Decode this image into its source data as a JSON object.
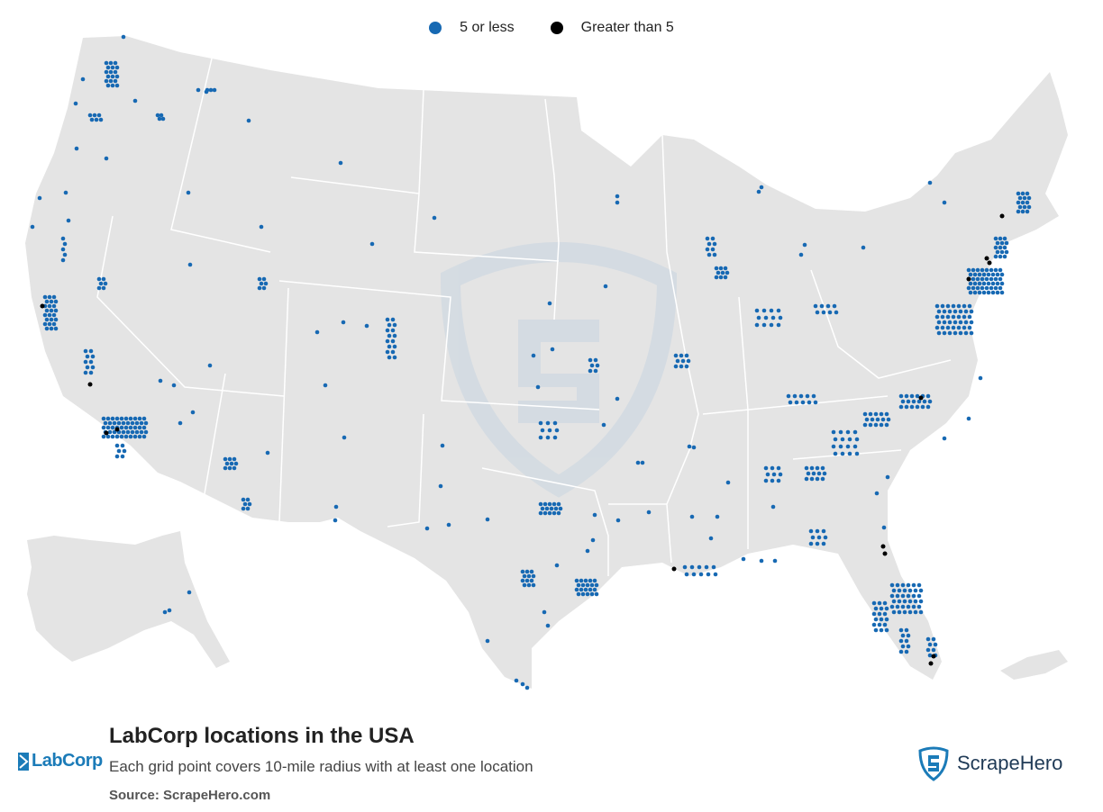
{
  "legend": {
    "items": [
      {
        "label": "5 or less",
        "color": "#1769b3"
      },
      {
        "label": "Greater than 5",
        "color": "#000000"
      }
    ]
  },
  "map": {
    "region": "USA",
    "land_color": "#e4e4e4",
    "border_color": "#ffffff",
    "watermark": "ScrapeHero shield",
    "density_clusters": [
      {
        "area": "Northeast corridor (Boston–New York–Philadelphia–Washington)",
        "level": "5 or less with several greater than 5"
      },
      {
        "area": "Florida",
        "level": "5 or less with several greater than 5"
      },
      {
        "area": "North Carolina / Southeast",
        "level": "5 or less with several greater than 5"
      },
      {
        "area": "California (Los Angeles, Bay Area)",
        "level": "5 or less with several greater than 5"
      },
      {
        "area": "Texas (Dallas, Houston)",
        "level": "5 or less"
      },
      {
        "area": "Midwest (Chicago, Ohio)",
        "level": "5 or less"
      },
      {
        "area": "Pacific Northwest (Seattle)",
        "level": "5 or less"
      },
      {
        "area": "New Orleans",
        "level": "greater than 5"
      }
    ]
  },
  "footer": {
    "title": "LabCorp locations in the USA",
    "subtitle": "Each grid point covers 10-mile radius with at least one location",
    "source": "Source: ScrapeHero.com"
  },
  "brands": {
    "left_logo_text": "LabCorp",
    "right_logo_text": "ScrapeHero"
  }
}
